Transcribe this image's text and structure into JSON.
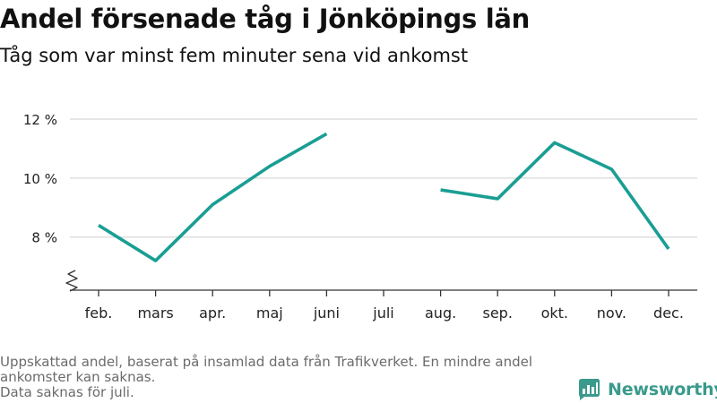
{
  "header": {
    "title": "Andel försenade tåg i Jönköpings län",
    "subtitle": "Tåg som var minst fem minuter sena vid ankomst"
  },
  "footnote": {
    "lines": [
      "Uppskattad andel, baserat på insamlad data från Trafikverket. En mindre andel ankomster kan saknas.",
      "Data saknas för juli."
    ]
  },
  "brand": {
    "name": "Newsworthy",
    "icon": "bar-chart-logo-icon",
    "color": "#3a9a8c"
  },
  "chart_data": {
    "type": "line",
    "title": "Andel försenade tåg i Jönköpings län",
    "subtitle": "Tåg som var minst fem minuter sena vid ankomst",
    "xlabel": "",
    "ylabel": "",
    "categories": [
      "feb.",
      "mars",
      "apr.",
      "maj",
      "juni",
      "juli",
      "aug.",
      "sep.",
      "okt.",
      "nov.",
      "dec."
    ],
    "series": [
      {
        "color": "#1a9e93",
        "values": [
          8.4,
          7.2,
          9.1,
          10.4,
          11.5,
          null,
          9.6,
          9.3,
          11.2,
          10.3,
          7.6
        ]
      }
    ],
    "yticks": [
      8,
      10,
      12
    ],
    "ytick_labels": [
      "8 %",
      "10 %",
      "12 %"
    ],
    "ylim": [
      6.2,
      12
    ],
    "y_axis_break": true,
    "grid": true,
    "gridline_color": "#d8d8d8"
  }
}
